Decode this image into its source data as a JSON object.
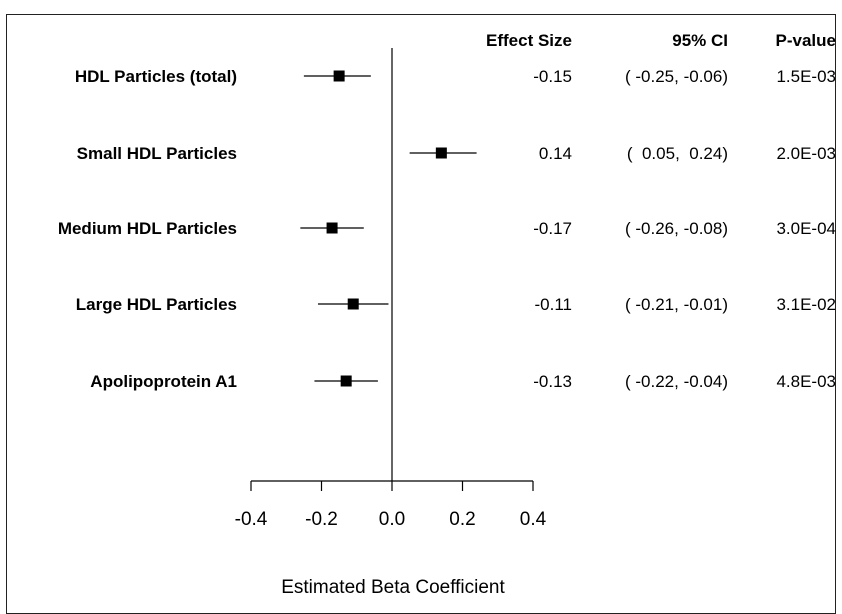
{
  "chart_data": {
    "type": "forest",
    "headers": {
      "effect": "Effect Size",
      "ci": "95% CI",
      "p": "P-value"
    },
    "rows": [
      {
        "label": "HDL Particles (total)",
        "effect": -0.15,
        "lo": -0.25,
        "hi": -0.06,
        "effect_text": "-0.15",
        "ci_text": "( -0.25, -0.06)",
        "p_text": "1.5E-03"
      },
      {
        "label": "Small HDL Particles",
        "effect": 0.14,
        "lo": 0.05,
        "hi": 0.24,
        "effect_text": "0.14",
        "ci_text": "(  0.05,  0.24)",
        "p_text": "2.0E-03"
      },
      {
        "label": "Medium HDL Particles",
        "effect": -0.17,
        "lo": -0.26,
        "hi": -0.08,
        "effect_text": "-0.17",
        "ci_text": "( -0.26, -0.08)",
        "p_text": "3.0E-04"
      },
      {
        "label": "Large HDL Particles",
        "effect": -0.11,
        "lo": -0.21,
        "hi": -0.01,
        "effect_text": "-0.11",
        "ci_text": "( -0.21, -0.01)",
        "p_text": "3.1E-02"
      },
      {
        "label": "Apolipoprotein A1",
        "effect": -0.13,
        "lo": -0.22,
        "hi": -0.04,
        "effect_text": "-0.13",
        "ci_text": "( -0.22, -0.04)",
        "p_text": "4.8E-03"
      }
    ],
    "x_ticks": [
      -0.4,
      -0.2,
      0.0,
      0.2,
      0.4
    ],
    "x_tick_labels": [
      "-0.4",
      "-0.2",
      "0.0",
      "0.2",
      "0.4"
    ],
    "xlim": [
      -0.4,
      0.4
    ],
    "reference_line": 0,
    "xlabel": "Estimated Beta Coefficient",
    "colors": {
      "marker": "#000000",
      "line": "#000000"
    }
  }
}
